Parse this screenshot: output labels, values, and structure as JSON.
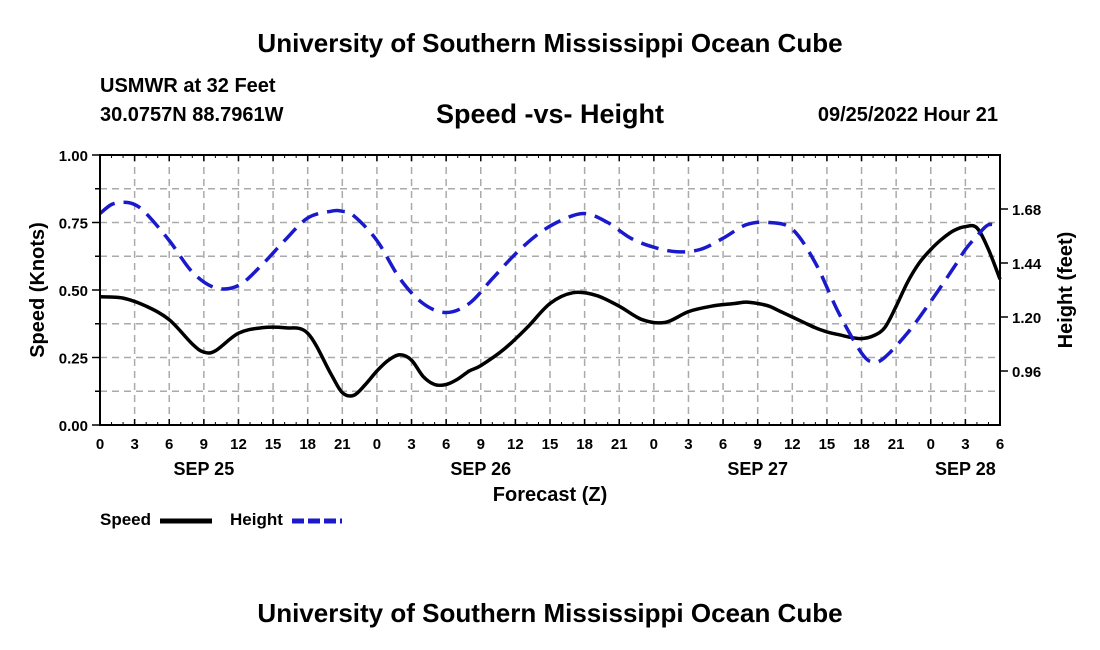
{
  "header": {
    "title": "University of Southern Mississippi Ocean Cube",
    "station": "USMWR at 32 Feet",
    "coordinates": "30.0757N  88.7961W",
    "subtitle": "Speed -vs- Height",
    "datetime": "09/25/2022 Hour 21"
  },
  "footer": {
    "title": "University of Southern Mississippi Ocean Cube"
  },
  "chart_data": {
    "type": "line",
    "title": "Speed -vs- Height",
    "xlabel": "Forecast (Z)",
    "ylabel_left": "Speed (Knots)",
    "ylabel_right": "Height (feet)",
    "x_range_hours": [
      0,
      78
    ],
    "x_tick_step_hours": 3,
    "x_tick_labels": [
      "0",
      "3",
      "6",
      "9",
      "12",
      "15",
      "18",
      "21",
      "0",
      "3",
      "6",
      "9",
      "12",
      "15",
      "18",
      "21",
      "0",
      "3",
      "6",
      "9",
      "12",
      "15",
      "18",
      "21",
      "0",
      "3",
      "6"
    ],
    "date_labels": [
      {
        "label": "SEP 25",
        "hour": 9
      },
      {
        "label": "SEP 26",
        "hour": 33
      },
      {
        "label": "SEP 27",
        "hour": 57
      },
      {
        "label": "SEP 28",
        "hour": 75
      }
    ],
    "ylim_left": [
      0,
      1
    ],
    "yticks_left": [
      "0.00",
      "0.25",
      "0.50",
      "0.75",
      "1.00"
    ],
    "ylim_right": [
      0.72,
      1.92
    ],
    "yticks_right": [
      "0.96",
      "1.20",
      "1.44",
      "1.68"
    ],
    "grid": true,
    "legend": [
      {
        "label": "Speed",
        "color": "#000000",
        "style": "solid"
      },
      {
        "label": "Height",
        "color": "#1a1acc",
        "style": "dashed"
      }
    ],
    "series": [
      {
        "name": "Speed",
        "axis": "left",
        "color": "#000000",
        "x": [
          0,
          2,
          4,
          6,
          8,
          9,
          10,
          12,
          14,
          16,
          18,
          20,
          21,
          22,
          23,
          24,
          25,
          26,
          27,
          28,
          29,
          30,
          31,
          32,
          33,
          35,
          37,
          39,
          41,
          43,
          45,
          47,
          49,
          51,
          53,
          55,
          56,
          57,
          58,
          59,
          60,
          61,
          62,
          63,
          64,
          65,
          66,
          67,
          68,
          69,
          70,
          71,
          72,
          73,
          74,
          75,
          76,
          77,
          78
        ],
        "values": [
          0.475,
          0.47,
          0.44,
          0.39,
          0.3,
          0.27,
          0.275,
          0.34,
          0.36,
          0.36,
          0.34,
          0.19,
          0.12,
          0.11,
          0.15,
          0.2,
          0.24,
          0.26,
          0.24,
          0.18,
          0.15,
          0.15,
          0.17,
          0.2,
          0.22,
          0.28,
          0.36,
          0.45,
          0.49,
          0.48,
          0.44,
          0.39,
          0.38,
          0.42,
          0.44,
          0.45,
          0.455,
          0.45,
          0.44,
          0.42,
          0.4,
          0.38,
          0.36,
          0.345,
          0.335,
          0.325,
          0.32,
          0.33,
          0.36,
          0.44,
          0.53,
          0.6,
          0.65,
          0.69,
          0.72,
          0.735,
          0.73,
          0.65,
          0.54
        ]
      },
      {
        "name": "Height",
        "axis": "right",
        "color": "#1a1acc",
        "x": [
          0,
          1,
          2,
          3,
          4,
          6,
          8,
          10,
          12,
          14,
          16,
          18,
          20,
          21,
          22,
          24,
          26,
          28,
          30,
          32,
          34,
          36,
          38,
          40,
          42,
          44,
          46,
          48,
          50,
          52,
          54,
          56,
          58,
          60,
          62,
          64,
          66,
          67,
          68,
          70,
          72,
          74,
          75,
          76,
          77,
          78
        ],
        "values": [
          1.66,
          1.7,
          1.71,
          1.7,
          1.66,
          1.54,
          1.4,
          1.33,
          1.34,
          1.43,
          1.54,
          1.64,
          1.67,
          1.67,
          1.65,
          1.54,
          1.37,
          1.26,
          1.22,
          1.26,
          1.37,
          1.48,
          1.57,
          1.63,
          1.66,
          1.62,
          1.55,
          1.51,
          1.49,
          1.5,
          1.55,
          1.61,
          1.62,
          1.59,
          1.44,
          1.22,
          1.04,
          1.0,
          1.02,
          1.13,
          1.27,
          1.42,
          1.5,
          1.56,
          1.61,
          1.6
        ]
      }
    ]
  }
}
